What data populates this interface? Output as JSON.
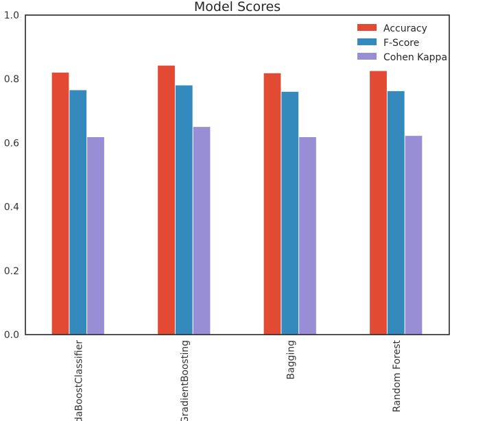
{
  "chart_data": {
    "type": "bar",
    "title": "Model Scores",
    "xlabel": "",
    "ylabel": "",
    "categories": [
      "AdaBoostClassifier",
      "GradientBoosting",
      "Bagging",
      "Random Forest"
    ],
    "series": [
      {
        "name": "Accuracy",
        "color": "#e24a33",
        "values": [
          0.82,
          0.842,
          0.818,
          0.825
        ]
      },
      {
        "name": "F-Score",
        "color": "#348abd",
        "values": [
          0.765,
          0.78,
          0.76,
          0.762
        ]
      },
      {
        "name": "Cohen Kappa",
        "color": "#988ed5",
        "values": [
          0.618,
          0.65,
          0.618,
          0.622
        ]
      }
    ],
    "ylim": [
      0,
      1.0
    ],
    "yticks": [
      "0.0",
      "0.2",
      "0.4",
      "0.6",
      "0.8",
      "1.0"
    ],
    "grid": false,
    "legend_position": "top-right"
  }
}
